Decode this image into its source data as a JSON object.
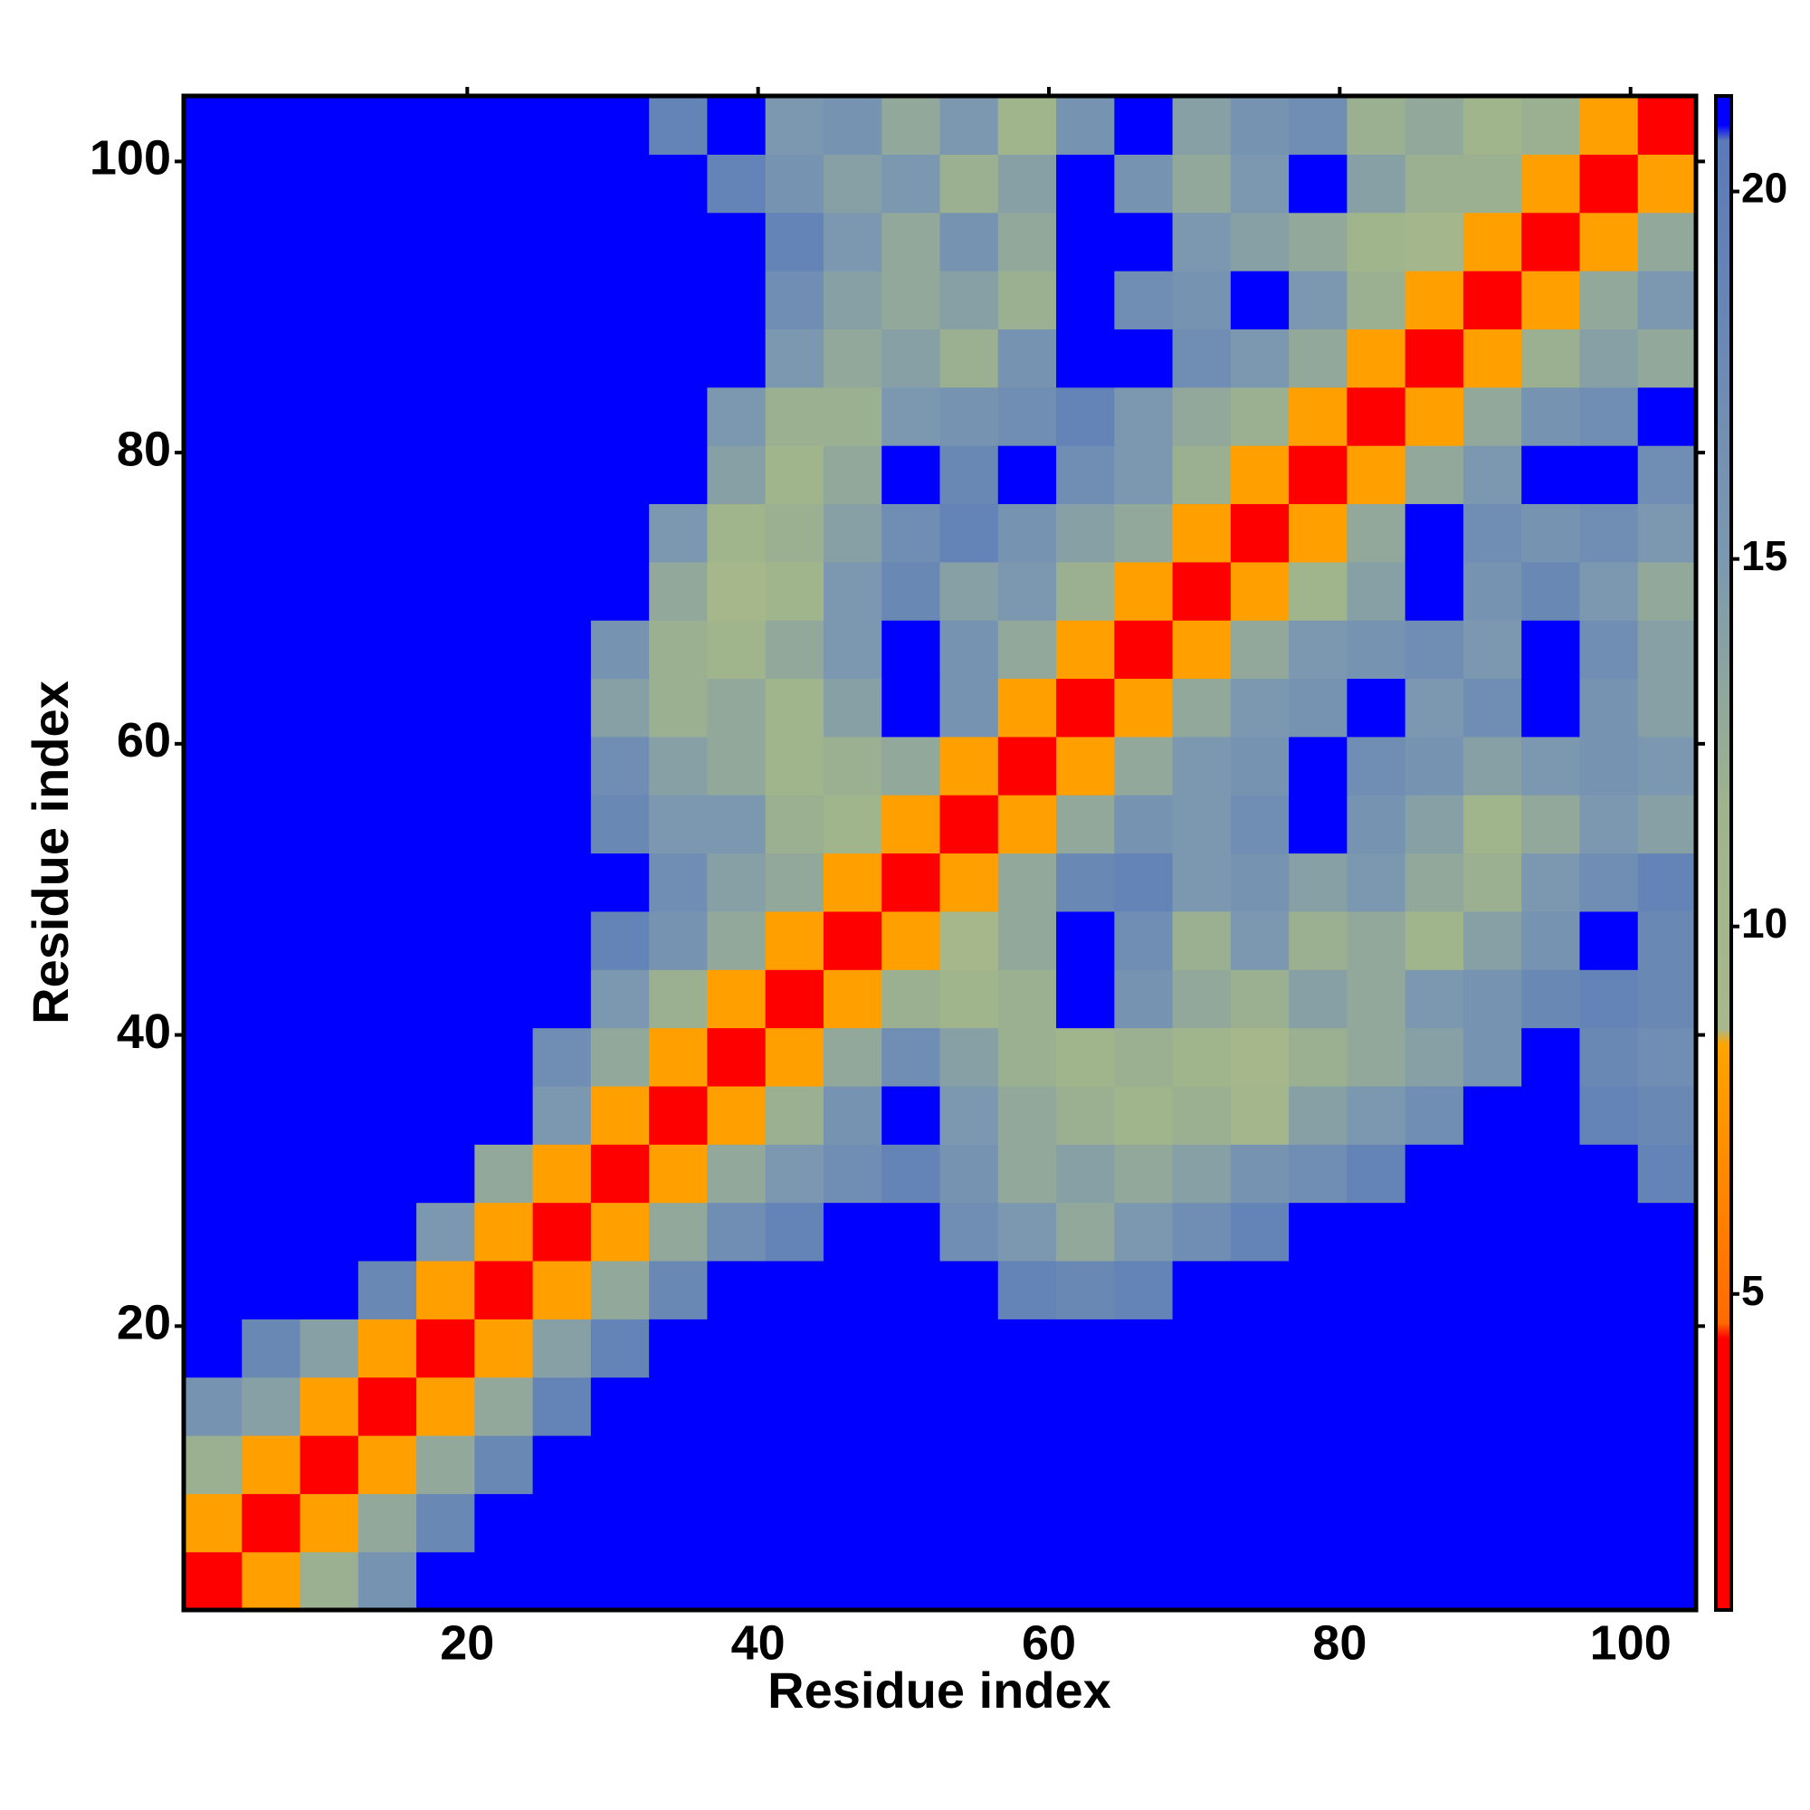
{
  "chart_data": {
    "type": "heatmap",
    "xlabel": "Residue index",
    "ylabel": "Residue index",
    "x": [
      2.5,
      6.5,
      10.5,
      14.5,
      18.5,
      22.5,
      26.5,
      30.5,
      34.5,
      38.5,
      42.5,
      46.5,
      50.5,
      54.5,
      58.5,
      62.5,
      66.5,
      70.5,
      74.5,
      78.5,
      82.5,
      86.5,
      90.5,
      94.5,
      98.5,
      102.5
    ],
    "y": [
      2.5,
      6.5,
      10.5,
      14.5,
      18.5,
      22.5,
      26.5,
      30.5,
      34.5,
      38.5,
      42.5,
      46.5,
      50.5,
      54.5,
      58.5,
      62.5,
      66.5,
      70.5,
      74.5,
      78.5,
      82.5,
      86.5,
      90.5,
      94.5,
      98.5,
      102.5
    ],
    "xlim": [
      0.5,
      104.5
    ],
    "ylim": [
      0.5,
      104.5
    ],
    "xticks": [
      20,
      40,
      60,
      80,
      100
    ],
    "yticks": [
      20,
      40,
      60,
      80,
      100
    ],
    "z": [
      [
        3,
        8,
        12,
        16,
        21,
        21,
        21,
        21,
        21,
        21,
        21,
        21,
        21,
        21,
        21,
        21,
        21,
        21,
        21,
        21,
        21,
        21,
        21,
        21,
        21,
        21
      ],
      [
        8,
        3,
        8,
        13,
        18,
        21,
        21,
        21,
        21,
        21,
        21,
        21,
        21,
        21,
        21,
        21,
        21,
        21,
        21,
        21,
        21,
        21,
        21,
        21,
        21,
        21
      ],
      [
        12,
        8,
        3,
        8,
        13,
        18,
        21,
        21,
        21,
        21,
        21,
        21,
        21,
        21,
        21,
        21,
        21,
        21,
        21,
        21,
        21,
        21,
        21,
        21,
        21,
        21
      ],
      [
        16,
        14,
        8,
        3,
        8,
        13,
        19,
        21,
        21,
        21,
        21,
        21,
        21,
        21,
        21,
        21,
        21,
        21,
        21,
        21,
        21,
        21,
        21,
        21,
        21,
        21
      ],
      [
        21,
        18,
        14,
        8,
        3,
        8,
        14,
        19,
        21,
        21,
        21,
        21,
        21,
        21,
        21,
        21,
        21,
        21,
        21,
        21,
        21,
        21,
        21,
        21,
        21,
        21
      ],
      [
        21,
        21,
        21,
        18,
        8,
        3,
        8,
        13,
        18,
        21,
        21,
        21,
        21,
        21,
        19,
        18,
        19,
        21,
        21,
        21,
        21,
        21,
        21,
        21,
        21,
        21
      ],
      [
        21,
        21,
        21,
        21,
        15,
        8,
        3,
        8,
        13,
        17,
        19,
        21,
        21,
        17,
        15,
        13,
        15,
        17,
        19,
        21,
        21,
        21,
        21,
        21,
        21,
        21
      ],
      [
        21,
        21,
        21,
        21,
        21,
        13,
        8,
        3,
        8,
        13,
        15,
        17,
        19,
        16,
        13,
        14,
        13,
        14,
        16,
        17,
        19,
        21,
        21,
        21,
        21,
        19
      ],
      [
        21,
        21,
        21,
        21,
        21,
        21,
        15,
        8,
        3,
        8,
        12,
        16,
        21,
        15,
        13,
        12,
        11,
        12,
        10,
        14,
        15,
        17,
        21,
        21,
        19,
        18
      ],
      [
        21,
        21,
        21,
        21,
        21,
        21,
        17,
        13,
        8,
        3,
        8,
        13,
        17,
        14,
        12,
        11,
        12,
        11,
        9,
        12,
        13,
        14,
        16,
        21,
        18,
        17
      ],
      [
        21,
        21,
        21,
        21,
        21,
        21,
        21,
        15,
        12,
        8,
        3,
        8,
        12,
        11,
        12,
        21,
        16,
        13,
        12,
        14,
        13,
        15,
        16,
        18,
        19,
        18
      ],
      [
        21,
        21,
        21,
        21,
        21,
        21,
        21,
        19,
        16,
        13,
        8,
        3,
        8,
        9,
        13,
        21,
        17,
        12,
        15,
        12,
        13,
        11,
        14,
        16,
        21,
        18
      ],
      [
        21,
        21,
        21,
        21,
        21,
        21,
        21,
        21,
        17,
        14,
        13,
        8,
        3,
        8,
        13,
        18,
        19,
        15,
        16,
        14,
        15,
        13,
        12,
        15,
        17,
        19
      ],
      [
        21,
        21,
        21,
        21,
        21,
        21,
        21,
        18,
        15,
        15,
        12,
        11,
        8,
        3,
        8,
        13,
        16,
        15,
        17,
        21,
        16,
        14,
        11,
        13,
        15,
        14
      ],
      [
        21,
        21,
        21,
        21,
        21,
        21,
        21,
        17,
        14,
        13,
        11,
        12,
        13,
        8,
        3,
        8,
        13,
        15,
        16,
        21,
        17,
        16,
        14,
        15,
        16,
        15
      ],
      [
        21,
        21,
        21,
        21,
        21,
        21,
        21,
        14,
        12,
        13,
        11,
        14,
        21,
        16,
        8,
        3,
        8,
        13,
        15,
        16,
        21,
        15,
        17,
        21,
        16,
        14
      ],
      [
        21,
        21,
        21,
        21,
        21,
        21,
        21,
        16,
        12,
        11,
        13,
        15,
        21,
        16,
        13,
        8,
        3,
        8,
        13,
        15,
        16,
        17,
        15,
        21,
        17,
        14
      ],
      [
        21,
        21,
        21,
        21,
        21,
        21,
        21,
        21,
        13,
        9,
        11,
        15,
        18,
        14,
        15,
        12,
        8,
        3,
        8,
        11,
        14,
        21,
        16,
        18,
        15,
        13
      ],
      [
        21,
        21,
        21,
        21,
        21,
        21,
        21,
        21,
        15,
        11,
        12,
        14,
        17,
        19,
        16,
        14,
        13,
        8,
        3,
        8,
        13,
        21,
        17,
        16,
        17,
        15
      ],
      [
        21,
        21,
        21,
        21,
        21,
        21,
        21,
        21,
        21,
        14,
        11,
        13,
        21,
        18,
        21,
        17,
        15,
        12,
        8,
        3,
        8,
        13,
        15,
        21,
        21,
        17
      ],
      [
        21,
        21,
        21,
        21,
        21,
        21,
        21,
        21,
        21,
        15,
        12,
        12,
        15,
        16,
        17,
        19,
        15,
        13,
        12,
        8,
        3,
        8,
        13,
        16,
        17,
        21
      ],
      [
        21,
        21,
        21,
        21,
        21,
        21,
        21,
        21,
        21,
        21,
        15,
        13,
        14,
        12,
        16,
        21,
        21,
        17,
        15,
        13,
        8,
        3,
        8,
        12,
        14,
        13
      ],
      [
        21,
        21,
        21,
        21,
        21,
        21,
        21,
        21,
        21,
        21,
        17,
        14,
        13,
        14,
        12,
        21,
        17,
        16,
        21,
        15,
        12,
        8,
        3,
        8,
        13,
        15
      ],
      [
        21,
        21,
        21,
        21,
        21,
        21,
        21,
        21,
        21,
        21,
        19,
        15,
        13,
        16,
        13,
        21,
        21,
        15,
        14,
        13,
        11,
        10,
        8,
        3,
        8,
        13
      ],
      [
        21,
        21,
        21,
        21,
        21,
        21,
        21,
        21,
        21,
        19,
        16,
        14,
        15,
        12,
        14,
        21,
        16,
        13,
        15,
        21,
        14,
        12,
        12,
        8,
        3,
        8
      ],
      [
        21,
        21,
        21,
        21,
        21,
        21,
        21,
        21,
        19,
        21,
        15,
        16,
        13,
        15,
        11,
        16,
        21,
        14,
        16,
        17,
        12,
        13,
        11,
        12,
        8,
        3
      ]
    ],
    "colorbar": {
      "lim": [
        0.7,
        21.3
      ],
      "ticks": [
        5,
        10,
        15,
        20
      ],
      "stops": [
        [
          0.7,
          "#ff0000"
        ],
        [
          4.4,
          "#ff0000"
        ],
        [
          4.6,
          "#ff6a00"
        ],
        [
          8.4,
          "#ffa500"
        ],
        [
          8.6,
          "#a8b88c"
        ],
        [
          11.5,
          "#a0b48c"
        ],
        [
          15,
          "#7c98b0"
        ],
        [
          20.7,
          "#5a7ab8"
        ],
        [
          20.9,
          "#0000ff"
        ],
        [
          21.3,
          "#0000ff"
        ]
      ]
    }
  }
}
